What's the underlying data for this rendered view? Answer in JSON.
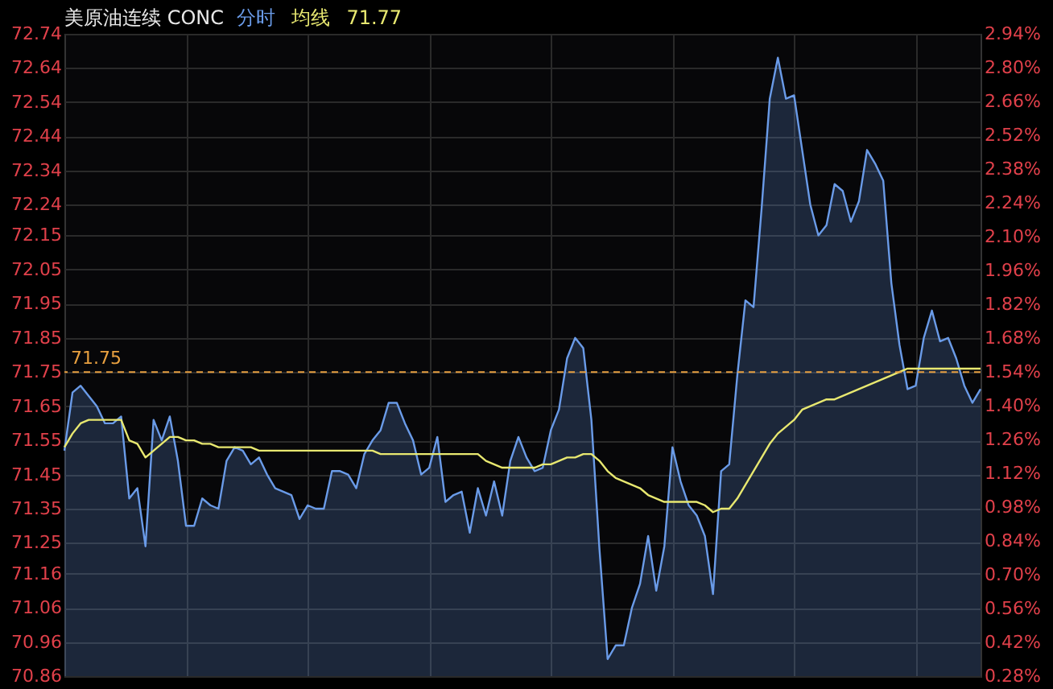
{
  "chart_data": {
    "type": "area",
    "title": "美原油连续 CONC",
    "grid": true,
    "tick_labels": "y",
    "annotations": [
      "71.77"
    ],
    "categories": [
      null,
      null,
      null,
      null,
      null,
      null,
      null,
      null,
      null,
      null,
      null,
      null,
      null,
      null,
      null,
      null,
      null,
      null,
      null,
      null,
      null,
      null,
      null,
      null,
      null,
      null,
      null,
      null,
      null,
      null,
      null,
      null,
      null,
      null,
      null,
      null,
      null,
      null,
      null,
      null,
      null,
      null,
      null,
      null,
      null,
      null,
      null,
      null,
      null,
      null,
      null,
      null,
      null,
      null,
      null,
      null,
      null,
      null,
      null,
      null,
      null,
      null,
      null,
      null,
      null,
      null,
      null,
      null,
      null,
      null,
      null,
      null,
      null,
      null,
      null,
      null,
      null,
      null,
      null,
      null,
      null,
      null,
      null,
      null,
      null,
      null,
      null,
      null,
      null,
      null,
      null,
      null,
      null,
      null,
      null,
      null,
      null,
      null,
      null,
      null,
      null,
      null,
      null,
      null,
      null,
      null,
      null,
      null,
      null,
      null,
      null,
      null,
      null,
      null
    ],
    "ylim": [
      70.86,
      72.74
    ],
    "yticks": [
      72.74,
      72.64,
      72.54,
      72.44,
      72.34,
      72.24,
      72.15,
      72.05,
      71.95,
      71.85,
      71.75,
      71.65,
      71.55,
      71.45,
      71.35,
      71.25,
      71.16,
      71.06,
      70.96,
      70.86
    ],
    "y2lim": [
      0.28,
      2.94
    ],
    "y2ticks": [
      {
        "value": 2.94,
        "label": "2.94%"
      },
      {
        "value": 2.8,
        "label": "2.80%"
      },
      {
        "value": 2.66,
        "label": "2.66%"
      },
      {
        "value": 2.52,
        "label": "2.52%"
      },
      {
        "value": 2.38,
        "label": "2.38%"
      },
      {
        "value": 2.24,
        "label": "2.24%"
      },
      {
        "value": 2.1,
        "label": "2.10%"
      },
      {
        "value": 1.96,
        "label": "1.96%"
      },
      {
        "value": 1.82,
        "label": "1.82%"
      },
      {
        "value": 1.68,
        "label": "1.68%"
      },
      {
        "value": 1.54,
        "label": "1.54%"
      },
      {
        "value": 1.4,
        "label": "1.40%"
      },
      {
        "value": 1.26,
        "label": "1.26%"
      },
      {
        "value": 1.12,
        "label": "1.12%"
      },
      {
        "value": 0.98,
        "label": "0.98%"
      },
      {
        "value": 0.84,
        "label": "0.84%"
      },
      {
        "value": 0.7,
        "label": "0.70%"
      },
      {
        "value": 0.56,
        "label": "0.56%"
      },
      {
        "value": 0.42,
        "label": "0.42%"
      },
      {
        "value": 0.28,
        "label": "0.28%"
      }
    ],
    "ref_lines": [
      {
        "axis": "y",
        "value": 71.75,
        "label": "71.75",
        "color": "#e8a040",
        "line_style": "dashed"
      }
    ],
    "series": [
      {
        "name": "分时",
        "color": "#6a9be8",
        "values": [
          71.52,
          71.69,
          71.71,
          71.68,
          71.65,
          71.6,
          71.6,
          71.62,
          71.38,
          71.41,
          71.24,
          71.61,
          71.55,
          71.62,
          71.49,
          71.3,
          71.3,
          71.38,
          71.36,
          71.35,
          71.49,
          71.53,
          71.52,
          71.48,
          71.5,
          71.45,
          71.41,
          71.4,
          71.39,
          71.32,
          71.36,
          71.35,
          71.35,
          71.46,
          71.46,
          71.45,
          71.41,
          71.51,
          71.55,
          71.58,
          71.66,
          71.66,
          71.6,
          71.55,
          71.45,
          71.47,
          71.56,
          71.37,
          71.39,
          71.4,
          71.28,
          71.41,
          71.33,
          71.43,
          71.33,
          71.49,
          71.56,
          71.5,
          71.46,
          71.47,
          71.58,
          71.64,
          71.79,
          71.85,
          71.82,
          71.61,
          71.23,
          70.91,
          70.95,
          70.95,
          71.06,
          71.13,
          71.27,
          71.11,
          71.24,
          71.53,
          71.43,
          71.36,
          71.33,
          71.27,
          71.1,
          71.46,
          71.48,
          71.74,
          71.96,
          71.94,
          72.23,
          72.55,
          72.67,
          72.55,
          72.56,
          72.4,
          72.24,
          72.15,
          72.18,
          72.3,
          72.28,
          72.19,
          72.25,
          72.4,
          72.36,
          72.31,
          72.01,
          71.83,
          71.7,
          71.71,
          71.85,
          71.93,
          71.84,
          71.85,
          71.79,
          71.71,
          71.66,
          71.7
        ]
      },
      {
        "name": "均线",
        "type": "line",
        "color": "#e8e870",
        "values": [
          71.53,
          71.57,
          71.6,
          71.61,
          71.61,
          71.61,
          71.61,
          71.61,
          71.55,
          71.54,
          71.5,
          71.52,
          71.54,
          71.56,
          71.56,
          71.55,
          71.55,
          71.54,
          71.54,
          71.53,
          71.53,
          71.53,
          71.53,
          71.53,
          71.52,
          71.52,
          71.52,
          71.52,
          71.52,
          71.52,
          71.52,
          71.52,
          71.52,
          71.52,
          71.52,
          71.52,
          71.52,
          71.52,
          71.52,
          71.51,
          71.51,
          71.51,
          71.51,
          71.51,
          71.51,
          71.51,
          71.51,
          71.51,
          71.51,
          71.51,
          71.51,
          71.51,
          71.49,
          71.48,
          71.47,
          71.47,
          71.47,
          71.47,
          71.47,
          71.48,
          71.48,
          71.49,
          71.5,
          71.5,
          71.51,
          71.51,
          71.49,
          71.46,
          71.44,
          71.43,
          71.42,
          71.41,
          71.39,
          71.38,
          71.37,
          71.37,
          71.37,
          71.37,
          71.37,
          71.36,
          71.34,
          71.35,
          71.35,
          71.38,
          71.42,
          71.46,
          71.5,
          71.54,
          71.57,
          71.59,
          71.61,
          71.64,
          71.65,
          71.66,
          71.67,
          71.67,
          71.68,
          71.69,
          71.7,
          71.71,
          71.72,
          71.73,
          71.74,
          71.75,
          71.76,
          71.76,
          71.76,
          71.76,
          71.76,
          71.76,
          71.76,
          71.76,
          71.76,
          71.76
        ]
      }
    ]
  }
}
